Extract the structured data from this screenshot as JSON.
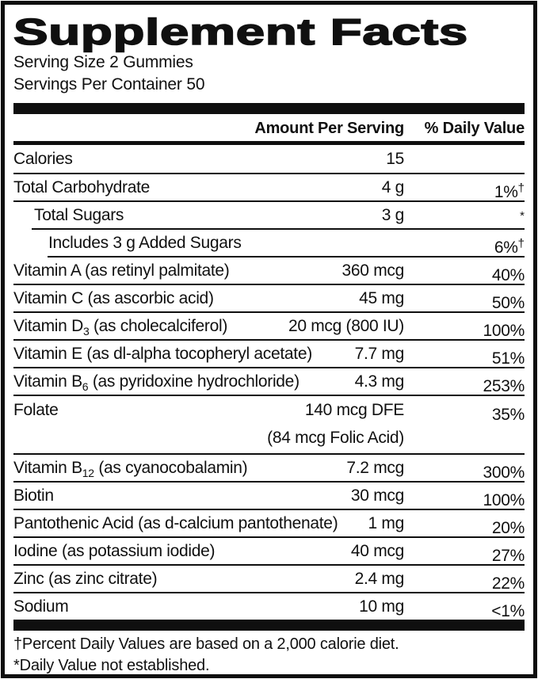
{
  "label": {
    "title": "Supplement Facts",
    "serving_size": "Serving Size 2 Gummies",
    "servings_per_container": "Servings Per Container 50",
    "columns": {
      "amount": "Amount Per Serving",
      "daily_value": "% Daily Value"
    },
    "rows": [
      {
        "name": "Calories",
        "amount": "15"
      },
      {
        "name": "Total Carbohydrate",
        "amount": "4 g",
        "dv": "1%",
        "sup": "†"
      },
      {
        "name": "Total Sugars",
        "amount": "3 g",
        "sup": "*"
      },
      {
        "name": "Includes 3 g Added Sugars",
        "dv": "6%",
        "sup": "†"
      },
      {
        "name": "Vitamin A (as retinyl palmitate)",
        "amount": "360 mcg",
        "dv": "40%"
      },
      {
        "name": "Vitamin C (as ascorbic acid)",
        "amount": "45 mg",
        "dv": "50%"
      },
      {
        "name": "Vitamin D",
        "sub": "3",
        "name2": " (as cholecalciferol)",
        "amount": "20 mcg (800 IU)",
        "dv": "100%"
      },
      {
        "name": "Vitamin E (as dl-alpha tocopheryl acetate)",
        "amount": "7.7 mg",
        "dv": "51%"
      },
      {
        "name": "Vitamin B",
        "sub": "6",
        "name2": " (as pyridoxine hydrochloride)",
        "amount": "4.3 mg",
        "dv": "253%"
      },
      {
        "name": "Folate",
        "amount": "140 mcg DFE",
        "amount2": "(84 mcg Folic Acid)",
        "dv": "35%"
      },
      {
        "name": "Vitamin B",
        "sub": "12",
        "name2": " (as cyanocobalamin)",
        "amount": "7.2 mcg",
        "dv": "300%"
      },
      {
        "name": "Biotin",
        "amount": "30 mcg",
        "dv": "100%"
      },
      {
        "name": "Pantothenic Acid (as d-calcium pantothenate)",
        "amount": "1 mg",
        "dv": "20%"
      },
      {
        "name": "Iodine (as potassium iodide)",
        "amount": "40 mcg",
        "dv": "27%"
      },
      {
        "name": "Zinc (as zinc citrate)",
        "amount": "2.4 mg",
        "dv": "22%"
      },
      {
        "name": "Sodium",
        "amount": "10 mg",
        "dv": "<1%"
      }
    ],
    "footnotes": {
      "daily_values": "†Percent Daily Values are based on a 2,000 calorie diet.",
      "not_established": "*Daily Value not established."
    },
    "colors": {
      "text": "#101010",
      "background": "#ffffff"
    }
  }
}
